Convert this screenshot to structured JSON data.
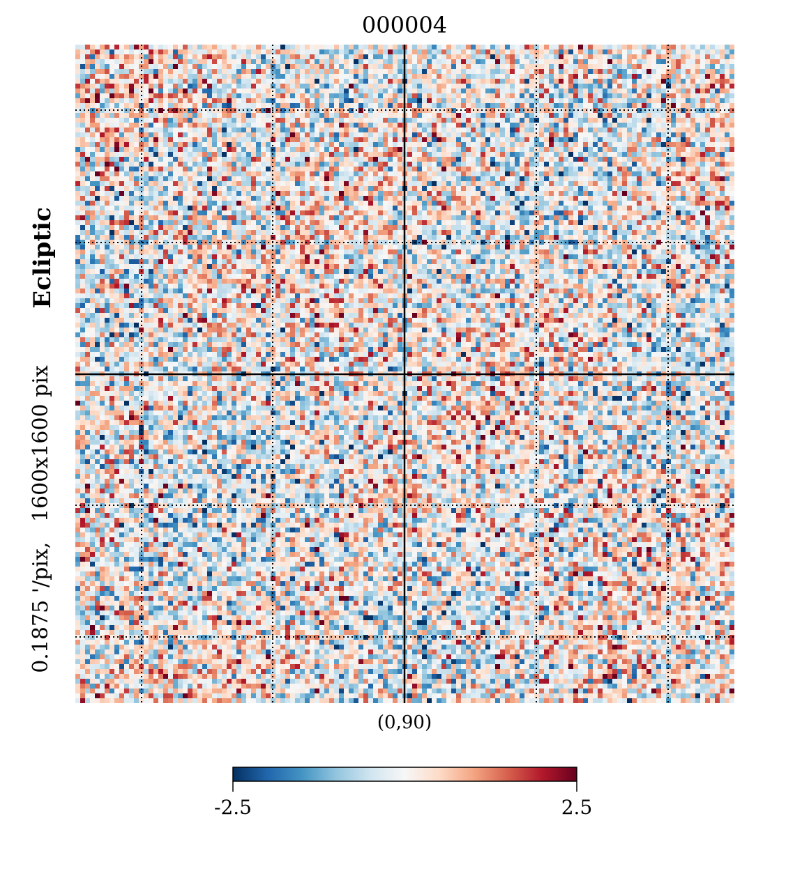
{
  "chart_data": {
    "type": "heatmap",
    "title": "000004",
    "ylabel_bold": "Ecliptic",
    "ylabel": "0.1875 '/pix,   1600x1600 pix",
    "center_label": "(0,90)",
    "grid": "dotted graticule",
    "colormap": "RdBu_r",
    "colorbar": {
      "vmin": -2.5,
      "vmax": 2.5,
      "min_label": "-2.5",
      "max_label": "2.5",
      "orientation": "horizontal",
      "placement": "bottom",
      "stops": [
        "#053061",
        "#2166ac",
        "#4393c3",
        "#92c5de",
        "#d1e5f0",
        "#f7f7f7",
        "#fddbc7",
        "#f4a582",
        "#d6604d",
        "#b2182b",
        "#67001f"
      ]
    },
    "note": "Gnomonic projection of a random-looking noise field; pixel values span roughly -2.5 to 2.5."
  }
}
